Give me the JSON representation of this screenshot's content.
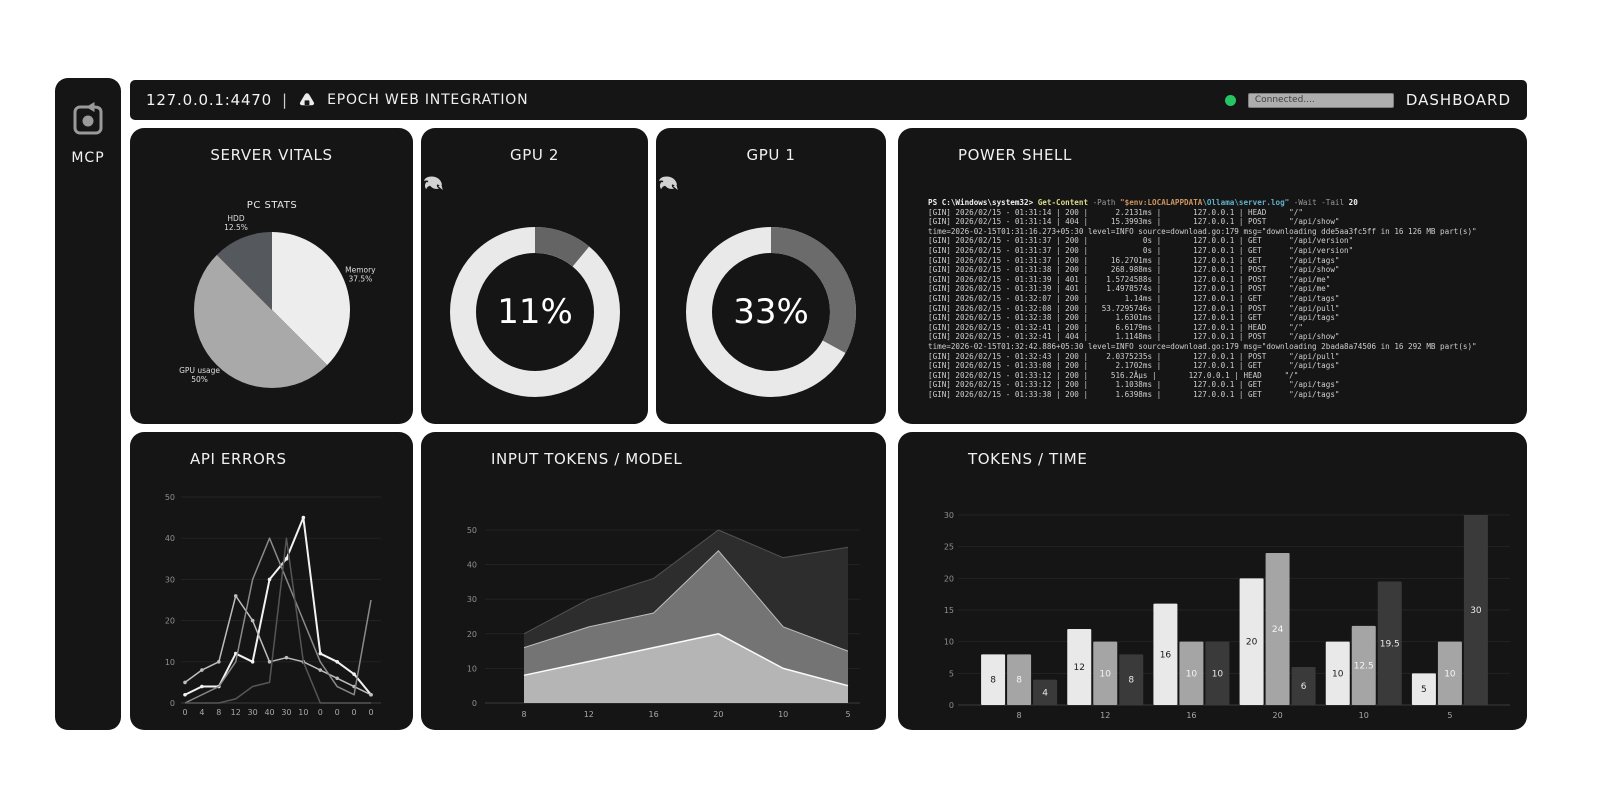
{
  "sidebar": {
    "label": "MCP"
  },
  "header": {
    "address": "127.0.0.1:4470",
    "separator": "|",
    "title": "EPOCH WEB INTEGRATION",
    "status_text": "Connected....",
    "status_color": "#27c463",
    "right_label": "DASHBOARD"
  },
  "panels": {
    "server_vitals": {
      "title": "SERVER VITALS"
    },
    "gpu2": {
      "title": "GPU 2",
      "value_label": "11%"
    },
    "gpu1": {
      "title": "GPU 1",
      "value_label": "33%"
    },
    "powershell": {
      "title": "POWER SHELL",
      "prompt_segments": [
        {
          "text": "PS C:\\Windows\\system32> ",
          "color": "#f0f0f0",
          "bold": true
        },
        {
          "text": "Get-Content ",
          "color": "#dcdc8b",
          "bold": true
        },
        {
          "text": "-Path ",
          "color": "#9a9a9a",
          "bold": false
        },
        {
          "text": "\"$env:LOCALAPPDATA",
          "color": "#ce9562",
          "bold": true
        },
        {
          "text": "\\Ollama\\server.log\"",
          "color": "#64b0c8",
          "bold": true
        },
        {
          "text": " -Wait -Tail ",
          "color": "#9a9a9a",
          "bold": false
        },
        {
          "text": "20",
          "color": "#f0f0f0",
          "bold": true
        }
      ],
      "lines": [
        "[GIN] 2026/02/15 - 01:31:14 | 200 |      2.2131ms |       127.0.0.1 | HEAD     \"/\"",
        "[GIN] 2026/02/15 - 01:31:14 | 404 |     15.3993ms |       127.0.0.1 | POST     \"/api/show\"",
        "time=2026-02-15T01:31:16.273+05:30 level=INFO source=download.go:179 msg=\"downloading dde5aa3fc5ff in 16 126 MB part(s)\"",
        "[GIN] 2026/02/15 - 01:31:37 | 200 |            0s |       127.0.0.1 | GET      \"/api/version\"",
        "[GIN] 2026/02/15 - 01:31:37 | 200 |            0s |       127.0.0.1 | GET      \"/api/version\"",
        "[GIN] 2026/02/15 - 01:31:37 | 200 |     16.2701ms |       127.0.0.1 | GET      \"/api/tags\"",
        "[GIN] 2026/02/15 - 01:31:38 | 200 |     268.988ms |       127.0.0.1 | POST     \"/api/show\"",
        "[GIN] 2026/02/15 - 01:31:39 | 401 |    1.5724588s |       127.0.0.1 | POST     \"/api/me\"",
        "[GIN] 2026/02/15 - 01:31:39 | 401 |    1.4978574s |       127.0.0.1 | POST     \"/api/me\"",
        "[GIN] 2026/02/15 - 01:32:07 | 200 |        1.14ms |       127.0.0.1 | GET      \"/api/tags\"",
        "[GIN] 2026/02/15 - 01:32:08 | 200 |   53.7295746s |       127.0.0.1 | POST     \"/api/pull\"",
        "[GIN] 2026/02/15 - 01:32:38 | 200 |      1.6301ms |       127.0.0.1 | GET      \"/api/tags\"",
        "[GIN] 2026/02/15 - 01:32:41 | 200 |      6.6179ms |       127.0.0.1 | HEAD     \"/\"",
        "[GIN] 2026/02/15 - 01:32:41 | 404 |      1.1148ms |       127.0.0.1 | POST     \"/api/show\"",
        "time=2026-02-15T01:32:42.886+05:30 level=INFO source=download.go:179 msg=\"downloading 2bada8a74506 in 16 292 MB part(s)\"",
        "[GIN] 2026/02/15 - 01:32:43 | 200 |    2.0375235s |       127.0.0.1 | POST     \"/api/pull\"",
        "[GIN] 2026/02/15 - 01:33:08 | 200 |      2.1702ms |       127.0.0.1 | GET      \"/api/tags\"",
        "[GIN] 2026/02/15 - 01:33:12 | 200 |     516.2Âµs |       127.0.0.1 | HEAD     \"/\"",
        "[GIN] 2026/02/15 - 01:33:12 | 200 |      1.1038ms |       127.0.0.1 | GET      \"/api/tags\"",
        "[GIN] 2026/02/15 - 01:33:38 | 200 |      1.6398ms |       127.0.0.1 | GET      \"/api/tags\""
      ]
    },
    "api_errors": {
      "title": "API ERRORS"
    },
    "input_tokens": {
      "title": "INPUT TOKENS / MODEL"
    },
    "tokens_time": {
      "title": "TOKENS / TIME"
    }
  },
  "chart_data": [
    {
      "id": "pc-stats",
      "type": "pie",
      "title": "PC STATS",
      "start_angle_deg": 0,
      "clockwise": true,
      "slices": [
        {
          "label": "Memory",
          "pct": "37.5%",
          "value": 37.5,
          "color": "#ededed",
          "label_angle": 67
        },
        {
          "label": "GPU usage",
          "pct": "50%",
          "value": 50,
          "color": "#a9a9a9",
          "label_angle": 229
        },
        {
          "label": "HDD",
          "pct": "12.5%",
          "value": 12.5,
          "color": "#55585c",
          "label_angle": 338
        }
      ]
    },
    {
      "id": "gpu2-donut",
      "type": "donut",
      "value": 11,
      "label": "11%",
      "value_color": "#646464",
      "track_color": "#e9e9e9",
      "text_color": "#ffffff"
    },
    {
      "id": "gpu1-donut",
      "type": "donut",
      "value": 33,
      "label": "33%",
      "value_color": "#6b6b6b",
      "track_color": "#e9e9e9",
      "text_color": "#ffffff"
    },
    {
      "id": "api-errors",
      "type": "line",
      "title": "API ERRORS",
      "x_labels": [
        "0",
        "4",
        "8",
        "12",
        "30",
        "40",
        "30",
        "10",
        "0",
        "0",
        "0",
        "0"
      ],
      "ylim": [
        0,
        50
      ],
      "yticks": [
        0,
        10,
        20,
        30,
        40,
        50
      ],
      "grid": true,
      "series": [
        {
          "name": "series-1",
          "color": "#f2f2f2",
          "width": 2,
          "markers": true,
          "values": [
            2,
            4,
            4,
            12,
            10,
            30,
            35,
            45,
            12,
            10,
            7,
            2
          ]
        },
        {
          "name": "series-2",
          "color": "#bdbdbd",
          "width": 1.5,
          "markers": true,
          "values": [
            5,
            8,
            10,
            26,
            20,
            10,
            11,
            10,
            8,
            6,
            4,
            2
          ]
        },
        {
          "name": "series-3",
          "color": "#8a8a8a",
          "width": 1.5,
          "markers": false,
          "values": [
            0,
            2,
            4,
            10,
            30,
            40,
            30,
            20,
            10,
            4,
            2,
            25
          ]
        },
        {
          "name": "series-4",
          "color": "#565656",
          "width": 1.5,
          "markers": false,
          "values": [
            0,
            0,
            0,
            1,
            4,
            5,
            40,
            10,
            0,
            0,
            0,
            0
          ]
        }
      ]
    },
    {
      "id": "input-tokens",
      "type": "area",
      "title": "INPUT TOKENS / MODEL",
      "stacked": true,
      "x_labels": [
        "8",
        "12",
        "16",
        "20",
        "10",
        "5"
      ],
      "ylim": [
        0,
        50
      ],
      "yticks": [
        0,
        10,
        20,
        30,
        40,
        50
      ],
      "grid": true,
      "series": [
        {
          "name": "layer-1",
          "color": "#b5b5b5",
          "edge": "#fafafa",
          "values": [
            8,
            12,
            16,
            20,
            10,
            5
          ]
        },
        {
          "name": "layer-2",
          "color": "#747474",
          "edge": "#bdbdbd",
          "values": [
            8,
            10,
            10,
            24,
            12,
            10
          ]
        },
        {
          "name": "layer-3",
          "color": "#2d2d2d",
          "edge": "#525252",
          "values": [
            4,
            8,
            10,
            6,
            20,
            30
          ]
        }
      ]
    },
    {
      "id": "tokens-time",
      "type": "bar",
      "title": "TOKENS / TIME",
      "x_labels": [
        "8",
        "12",
        "16",
        "20",
        "10",
        "5"
      ],
      "ylim": [
        0,
        30
      ],
      "yticks": [
        0,
        5,
        10,
        15,
        20,
        25,
        30
      ],
      "grid": true,
      "series": [
        {
          "name": "series-1",
          "color": "#e9e9e9",
          "label_color": "#1b1b1b",
          "values": [
            8,
            12,
            16,
            20,
            10,
            5
          ]
        },
        {
          "name": "series-2",
          "color": "#a5a5a5",
          "label_color": "#f5f5f5",
          "values": [
            8,
            10,
            10,
            24,
            12.5,
            10
          ]
        },
        {
          "name": "series-3",
          "color": "#3a3a3a",
          "label_color": "#e8e8e8",
          "values": [
            4,
            8,
            10,
            6,
            19.5,
            30
          ]
        }
      ]
    }
  ]
}
